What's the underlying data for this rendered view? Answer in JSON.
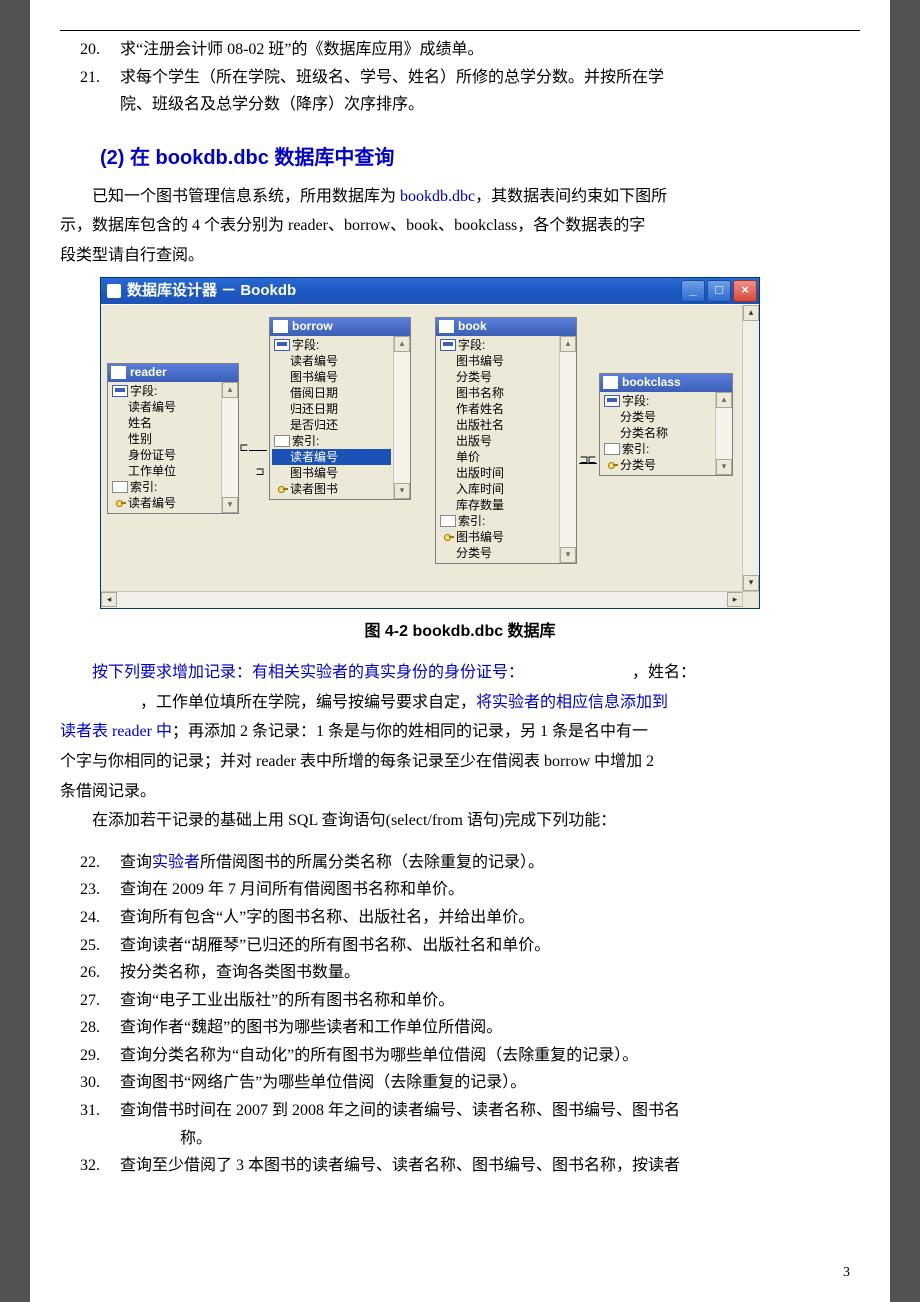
{
  "items_top": [
    {
      "num": "20.",
      "text": "求“注册会计师 08-02 班”的《数据库应用》成绩单。"
    },
    {
      "num": "21.",
      "text": "求每个学生（所在学院、班级名、学号、姓名）所修的总学分数。并按所在学"
    }
  ],
  "item21_cont": "院、班级名及总学分数（降序）次序排序。",
  "section_title": "(2) 在 bookdb.dbc 数据库中查询",
  "intro_1a": "已知一个图书管理信息系统，所用数据库为 ",
  "intro_1b": "bookdb.dbc",
  "intro_1c": "，其数据表间约束如下图所",
  "intro_2": "示，数据库包含的 4 个表分别为 reader、borrow、book、bookclass，各个数据表的字",
  "intro_3": "段类型请自行查阅。",
  "window": {
    "title": "数据库设计器 － Bookdb",
    "tables": {
      "reader": {
        "name": "reader",
        "field_label": "字段:",
        "fields": [
          "读者编号",
          "姓名",
          "性别",
          "身份证号",
          "工作单位"
        ],
        "index_label": "索引:",
        "indexes": [
          {
            "key": true,
            "name": "读者编号"
          }
        ]
      },
      "borrow": {
        "name": "borrow",
        "field_label": "字段:",
        "fields": [
          "读者编号",
          "图书编号",
          "借阅日期",
          "归还日期",
          "是否归还"
        ],
        "index_label": "索引:",
        "indexes": [
          {
            "key": false,
            "name": "读者编号",
            "hilite": true
          },
          {
            "key": false,
            "name": "图书编号"
          },
          {
            "key": true,
            "name": "读者图书"
          }
        ]
      },
      "book": {
        "name": "book",
        "field_label": "字段:",
        "fields": [
          "图书编号",
          "分类号",
          "图书名称",
          "作者姓名",
          "出版社名",
          "出版号",
          "单价",
          "出版时间",
          "入库时间",
          "库存数量"
        ],
        "index_label": "索引:",
        "indexes": [
          {
            "key": true,
            "name": "图书编号"
          },
          {
            "key": false,
            "name": "分类号"
          }
        ]
      },
      "bookclass": {
        "name": "bookclass",
        "field_label": "字段:",
        "fields": [
          "分类号",
          "分类名称"
        ],
        "index_label": "索引:",
        "indexes": [
          {
            "key": true,
            "name": "分类号"
          }
        ]
      }
    }
  },
  "caption": "图 4-2  bookdb.dbc 数据库",
  "mid_para": {
    "l1a": "按下列要求增加记录：有相关实验者的真实身份的身份证号：",
    "l1b": "，姓名：",
    "l2a": "，工作单位填所在学院，编号按编号要求自定，",
    "l2b": "将实验者的相应信息添加到",
    "l3a": "读者表 reader 中",
    "l3b": "；再添加 2 条记录：1 条是与你的姓相同的记录，另 1 条是名中有一",
    "l4": "个字与你相同的记录；并对 reader 表中所增的每条记录至少在借阅表 borrow 中增加 2",
    "l5": "条借阅记录。",
    "l6": "在添加若干记录的基础上用 SQL 查询语句(select/from 语句)完成下列功能："
  },
  "items_bottom": [
    {
      "num": "22.",
      "pre": "查询",
      "blue": "实验者",
      "post": "所借阅图书的所属分类名称（去除重复的记录）。"
    },
    {
      "num": "23.",
      "pre": "查询在 2009 年 7 月间所有借阅图书名称和单价。"
    },
    {
      "num": "24.",
      "pre": "查询所有包含“人”字的图书名称、出版社名，并给出单价。"
    },
    {
      "num": "25.",
      "pre": "查询读者“胡雁琴”已归还的所有图书名称、出版社名和单价。"
    },
    {
      "num": "26.",
      "pre": "按分类名称，查询各类图书数量。"
    },
    {
      "num": "27.",
      "pre": "查询“电子工业出版社”的所有图书名称和单价。"
    },
    {
      "num": "28.",
      "pre": "查询作者“魏超”的图书为哪些读者和工作单位所借阅。"
    },
    {
      "num": "29.",
      "pre": "查询分类名称为“自动化”的所有图书为哪些单位借阅（去除重复的记录）。"
    },
    {
      "num": "30.",
      "pre": "查询图书“网络广告”为哪些单位借阅（去除重复的记录）。"
    },
    {
      "num": "31.",
      "pre": "查询借书时间在 2007 到 2008 年之间的读者编号、读者名称、图书编号、图书名"
    },
    {
      "num": "",
      "pre": "称。",
      "indent": true
    },
    {
      "num": "32.",
      "pre": "查询至少借阅了 3 本图书的读者编号、读者名称、图书编号、图书名称，按读者"
    }
  ],
  "page_num": "3"
}
